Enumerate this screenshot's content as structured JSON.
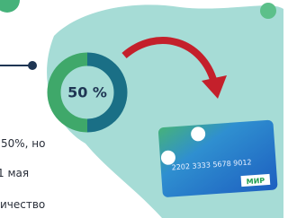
{
  "donut": {
    "value": 50,
    "label": "50 %"
  },
  "texts": [
    "50%, но",
    "1 мая",
    "ичество"
  ],
  "card": {
    "number": "2202 3333 5678 9012",
    "brand": "МИР"
  }
}
